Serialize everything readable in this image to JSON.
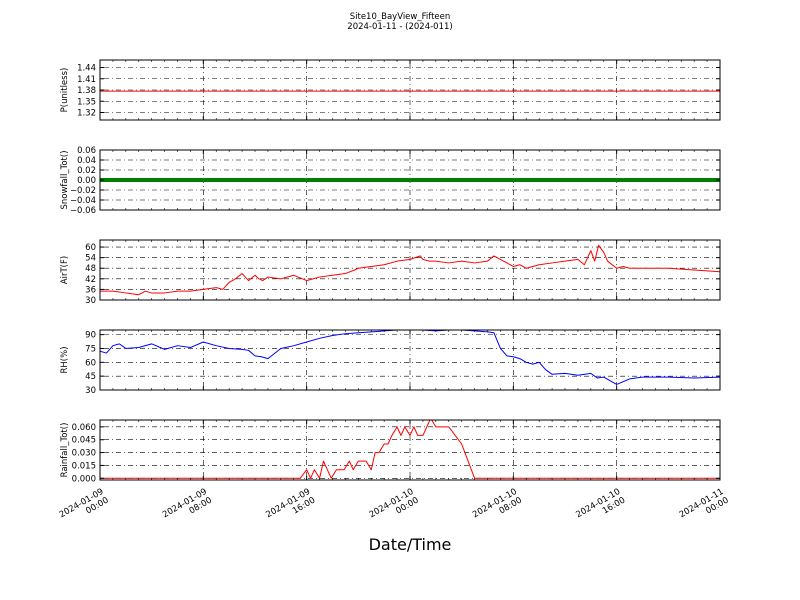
{
  "page": {
    "title": "Site10_BayView_Fifteen",
    "subtitle": "2024-01-11 - (2024-011)",
    "xlabel": "Date/Time"
  },
  "chart_data": {
    "type": "line",
    "x_axis": {
      "range": [
        "2024-01-09 00:00",
        "2024-01-11 00:00"
      ],
      "tick_labels": [
        [
          "2024-01-09",
          "00:00"
        ],
        [
          "2024-01-09",
          "08:00"
        ],
        [
          "2024-01-09",
          "16:00"
        ],
        [
          "2024-01-10",
          "00:00"
        ],
        [
          "2024-01-10",
          "08:00"
        ],
        [
          "2024-01-10",
          "16:00"
        ],
        [
          "2024-01-11",
          "00:00"
        ]
      ],
      "tick_hours": [
        0,
        8,
        16,
        24,
        32,
        40,
        48
      ]
    },
    "grid": true,
    "panels": [
      {
        "ylabel": "P(unitless)",
        "ylim": [
          1.3,
          1.46
        ],
        "yticks": [
          1.32,
          1.35,
          1.38,
          1.41,
          1.44
        ],
        "tick_labels": [
          "1.32",
          "1.35",
          "1.38",
          "1.41",
          "1.44"
        ],
        "color": "#ff0000",
        "line_width": 1,
        "series_x_hours": [
          0,
          48
        ],
        "series_values": [
          1.377,
          1.377
        ]
      },
      {
        "ylabel": "Snowfall_Tot()",
        "ylim": [
          -0.06,
          0.06
        ],
        "yticks": [
          -0.06,
          -0.04,
          -0.02,
          0.0,
          0.02,
          0.04,
          0.06
        ],
        "tick_labels": [
          "−0.06",
          "−0.04",
          "−0.02",
          "0.00",
          "0.02",
          "0.04",
          "0.06"
        ],
        "color": "#008000",
        "line_width": 4,
        "series_x_hours": [
          0,
          48
        ],
        "series_values": [
          0,
          0
        ]
      },
      {
        "ylabel": "AirT(F)",
        "ylim": [
          30,
          64
        ],
        "yticks": [
          30,
          36,
          42,
          48,
          54,
          60
        ],
        "tick_labels": [
          "30",
          "36",
          "42",
          "48",
          "54",
          "60"
        ],
        "color": "#ff0000",
        "line_width": 1,
        "series_x_hours": [
          0,
          1,
          2,
          3,
          3.5,
          4,
          5,
          6,
          7,
          8,
          9,
          9.5,
          10,
          10.5,
          11,
          11.5,
          12,
          12.3,
          12.6,
          13,
          14,
          15,
          16,
          17,
          18,
          19,
          19.7,
          20,
          21,
          22,
          23,
          24,
          24.8,
          25,
          25.5,
          26,
          27,
          28,
          29,
          30,
          30.5,
          31,
          32,
          32.5,
          33,
          34,
          35,
          36,
          37,
          37.5,
          38,
          38.3,
          38.6,
          39,
          39.3,
          40,
          40.5,
          41,
          42,
          44,
          46,
          48
        ],
        "series_values": [
          35,
          35,
          34,
          33,
          35,
          34,
          34,
          35,
          35,
          36,
          37,
          36,
          40,
          42,
          45,
          41,
          44,
          42,
          41,
          43,
          42,
          44,
          41,
          43,
          44,
          45,
          47,
          48,
          49,
          50,
          52,
          53,
          55,
          53,
          52,
          52,
          51,
          52,
          51,
          52,
          55,
          53,
          49,
          50,
          48,
          50,
          51,
          52,
          53,
          50,
          58,
          52,
          61,
          57,
          52,
          48,
          49,
          48,
          48,
          48,
          47,
          46
        ]
      },
      {
        "ylabel": "RH(%)",
        "ylim": [
          30,
          95
        ],
        "yticks": [
          30,
          45,
          60,
          75,
          90
        ],
        "tick_labels": [
          "30",
          "45",
          "60",
          "75",
          "90"
        ],
        "color": "#0000ff",
        "line_width": 1,
        "series_x_hours": [
          0,
          0.5,
          1,
          1.5,
          2,
          3,
          4,
          5,
          6,
          7,
          8,
          9,
          10,
          11,
          11.5,
          12,
          12.5,
          13,
          14,
          15,
          16,
          17,
          18,
          19,
          20,
          21,
          22,
          23,
          24,
          25,
          26,
          27,
          28,
          29,
          30,
          30.5,
          31,
          31.5,
          32,
          32.5,
          33,
          33.5,
          34,
          34.5,
          35,
          36,
          37,
          38,
          38.5,
          39,
          39.5,
          40,
          41,
          42,
          44,
          46,
          48
        ],
        "series_values": [
          72,
          70,
          78,
          80,
          75,
          76,
          80,
          74,
          78,
          76,
          82,
          78,
          75,
          74,
          73,
          67,
          66,
          64,
          75,
          78,
          82,
          86,
          89,
          91,
          92,
          93,
          94,
          95,
          95,
          95,
          94,
          95,
          95,
          94,
          93,
          92,
          75,
          67,
          66,
          64,
          60,
          58,
          60,
          52,
          47,
          48,
          46,
          48,
          43,
          44,
          40,
          36,
          42,
          44,
          44,
          43,
          44
        ]
      },
      {
        "ylabel": "Rainfall_Tot()",
        "ylim": [
          -0.002,
          0.068
        ],
        "yticks": [
          0.0,
          0.015,
          0.03,
          0.045,
          0.06
        ],
        "tick_labels": [
          "0.000",
          "0.015",
          "0.030",
          "0.045",
          "0.060"
        ],
        "color": "#ff0000",
        "line_width": 1,
        "series_x_hours": [
          0,
          15.5,
          16.0,
          16.3,
          16.6,
          17,
          17.3,
          17.6,
          17.9,
          18.3,
          18.6,
          18.9,
          19.3,
          19.6,
          20.0,
          20.3,
          20.6,
          21,
          21.3,
          21.6,
          22,
          22.3,
          22.6,
          23,
          23.3,
          23.6,
          24,
          24.3,
          24.6,
          25,
          25.3,
          25.6,
          26,
          26.5,
          27,
          27.5,
          28,
          28.5,
          29,
          29.5,
          48
        ],
        "series_values": [
          0,
          0,
          0.01,
          0.0,
          0.01,
          0.0,
          0.02,
          0.01,
          0.0,
          0.01,
          0.01,
          0.01,
          0.02,
          0.01,
          0.02,
          0.02,
          0.02,
          0.01,
          0.03,
          0.03,
          0.04,
          0.04,
          0.05,
          0.06,
          0.05,
          0.06,
          0.05,
          0.06,
          0.05,
          0.05,
          0.06,
          0.07,
          0.06,
          0.06,
          0.06,
          0.05,
          0.04,
          0.02,
          0.0,
          0.0,
          0.0
        ]
      }
    ]
  }
}
